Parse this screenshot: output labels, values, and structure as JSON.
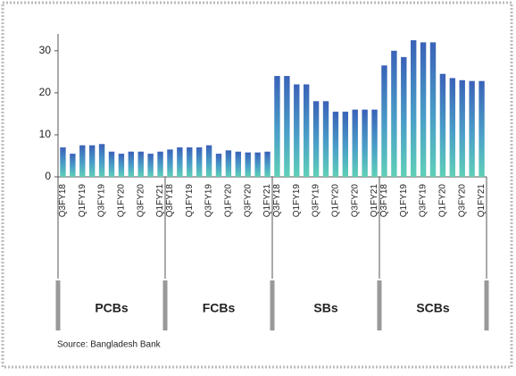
{
  "chart_data": {
    "type": "bar",
    "categories": [
      "Q3FY18",
      null,
      "Q1FY19",
      null,
      "Q3FY19",
      null,
      "Q1FY20",
      null,
      "Q3FY20",
      null,
      "Q1FY21"
    ],
    "groups": [
      {
        "name": "PCBs",
        "values": [
          7,
          5.5,
          7.5,
          7.5,
          7.8,
          6,
          5.5,
          6,
          6,
          5.5,
          6
        ]
      },
      {
        "name": "FCBs",
        "values": [
          6.5,
          7,
          7,
          7,
          7.5,
          5.5,
          6.3,
          6,
          5.8,
          5.8,
          6
        ]
      },
      {
        "name": "SBs",
        "values": [
          24,
          24,
          22,
          22,
          18,
          18,
          15.5,
          15.5,
          16,
          16,
          16
        ]
      },
      {
        "name": "SCBs",
        "values": [
          26.5,
          30,
          28.5,
          32.5,
          32,
          32,
          24.5,
          23.5,
          23,
          22.8,
          22.8
        ]
      }
    ],
    "ylim": [
      0,
      34
    ],
    "yticks": [
      0,
      10,
      20,
      30
    ],
    "source": "Source: Bangladesh Bank"
  }
}
